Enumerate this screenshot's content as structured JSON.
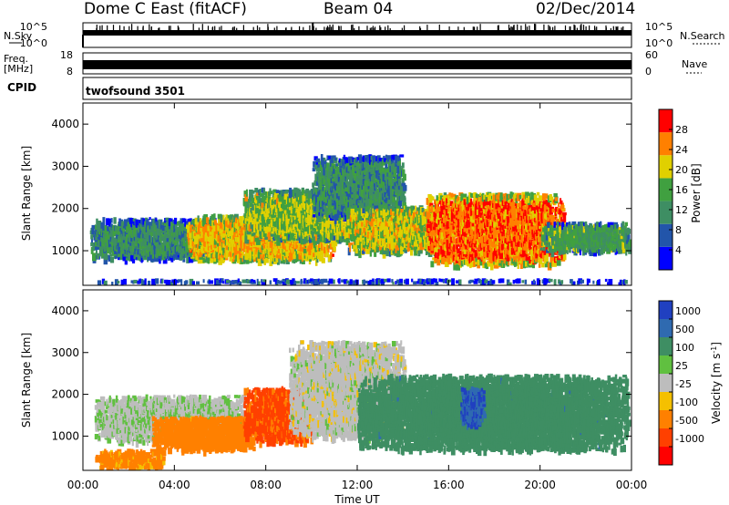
{
  "header": {
    "station": "Dome C East (fitACF)",
    "beam": "Beam 04",
    "date": "02/Dec/2014"
  },
  "top_panels": {
    "nsky_label": "N.Sky",
    "nsky_ticks": [
      "10^5",
      "10^0"
    ],
    "nsearch_label": "N.Search",
    "freq_label_1": "Freq.",
    "freq_label_2": "[MHz]",
    "freq_ticks": [
      "18",
      "8"
    ],
    "nave_ticks": [
      "60",
      "0"
    ],
    "nave_label": "Nave",
    "cpid_label": "CPID",
    "cpid_value": "twofsound 3501"
  },
  "chart_data": [
    {
      "type": "heatmap",
      "title": "",
      "xlabel": "",
      "ylabel": "Slant Range [km]",
      "x_ticks": [
        "00:00",
        "04:00",
        "08:00",
        "12:00",
        "16:00",
        "20:00",
        "00:00"
      ],
      "xlim": [
        0,
        24
      ],
      "y_ticks": [
        1000,
        2000,
        3000,
        4000
      ],
      "ylim": [
        180,
        4500
      ],
      "colorbar": {
        "label": "Power [dB]",
        "ticks": [
          4,
          8,
          12,
          16,
          20,
          24,
          28
        ],
        "range": [
          0,
          32
        ],
        "colors": [
          "#0000ff",
          "#2255aa",
          "#3e8e63",
          "#40a040",
          "#e0d000",
          "#ff8000",
          "#ff0000"
        ]
      },
      "echo_regions": [
        {
          "t_start": 0.5,
          "t_end": 23.8,
          "r_min": 180,
          "r_max": 350,
          "level": 6
        },
        {
          "t_start": 0.3,
          "t_end": 6.0,
          "r_min": 850,
          "r_max": 1800,
          "level": 12
        },
        {
          "t_start": 4.5,
          "t_end": 11.0,
          "r_min": 800,
          "r_max": 1900,
          "level": 22
        },
        {
          "t_start": 7.0,
          "t_end": 12.5,
          "r_min": 1300,
          "r_max": 2500,
          "level": 18
        },
        {
          "t_start": 10.0,
          "t_end": 14.0,
          "r_min": 1800,
          "r_max": 3300,
          "level": 12
        },
        {
          "t_start": 11.5,
          "t_end": 16.0,
          "r_min": 1000,
          "r_max": 2100,
          "level": 20
        },
        {
          "t_start": 15.0,
          "t_end": 21.0,
          "r_min": 700,
          "r_max": 2400,
          "level": 26
        },
        {
          "t_start": 20.0,
          "t_end": 24.0,
          "r_min": 1000,
          "r_max": 1700,
          "level": 14
        }
      ]
    },
    {
      "type": "heatmap",
      "title": "",
      "xlabel": "Time UT",
      "ylabel": "Slant Range [km]",
      "x_ticks": [
        "00:00",
        "04:00",
        "08:00",
        "12:00",
        "16:00",
        "20:00",
        "00:00"
      ],
      "xlim": [
        0,
        24
      ],
      "y_ticks": [
        1000,
        2000,
        3000,
        4000
      ],
      "ylim": [
        180,
        4500
      ],
      "colorbar": {
        "label": "Velocity [m s",
        "label_sup": "-1",
        "label_end": "]",
        "ticks": [
          "1000",
          "500",
          "100",
          "25",
          "-25",
          "-100",
          "-500",
          "-1000"
        ],
        "colors": [
          "#2040c0",
          "#2f6ab0",
          "#3e8e63",
          "#60c040",
          "#bdbdbd",
          "#f5c000",
          "#ff8000",
          "#ff4000",
          "#ff0000"
        ]
      },
      "echo_regions": [
        {
          "t_start": 0.5,
          "t_end": 3.5,
          "r_min": 200,
          "r_max": 700,
          "level": -90
        },
        {
          "t_start": 0.5,
          "t_end": 7.0,
          "r_min": 900,
          "r_max": 2000,
          "level": 15
        },
        {
          "t_start": 3.0,
          "t_end": 7.5,
          "r_min": 700,
          "r_max": 1500,
          "level": -140
        },
        {
          "t_start": 7.0,
          "t_end": 10.0,
          "r_min": 900,
          "r_max": 2200,
          "level": -400
        },
        {
          "t_start": 9.0,
          "t_end": 14.0,
          "r_min": 1000,
          "r_max": 3300,
          "level": 0
        },
        {
          "t_start": 12.0,
          "t_end": 23.8,
          "r_min": 700,
          "r_max": 2500,
          "level": 200
        },
        {
          "t_start": 16.5,
          "t_end": 17.5,
          "r_min": 1300,
          "r_max": 2200,
          "level": 700
        }
      ]
    }
  ]
}
